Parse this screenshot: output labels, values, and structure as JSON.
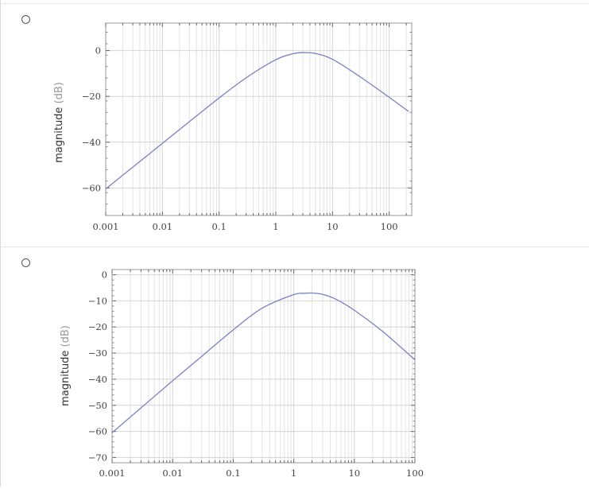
{
  "options": [
    {
      "radio_label": "",
      "chart_data": {
        "type": "line",
        "title": "",
        "xlabel": "",
        "ylabel": "magnitude",
        "ylabel_unit": "(dB)",
        "x_scale": "log",
        "xlim": [
          0.001,
          250
        ],
        "ylim": [
          -72,
          12
        ],
        "xticks": [
          "0.001",
          "0.01",
          "0.1",
          "1",
          "10",
          "100"
        ],
        "yticks": [
          "0",
          "−20",
          "−40",
          "−60"
        ],
        "ytick_values": [
          0,
          -20,
          -40,
          -60
        ],
        "grid": true,
        "line_color": "#7b7fc4",
        "series": [
          {
            "x": [
              0.001,
              0.003,
              0.01,
              0.03,
              0.1,
              0.3,
              1,
              2,
              3,
              5,
              10,
              30,
              100,
              220
            ],
            "y": [
              -60.4,
              -50.9,
              -40.5,
              -31.0,
              -20.7,
              -11.9,
              -4.0,
              -1.4,
              -0.9,
              -1.3,
              -3.8,
              -11.3,
              -20.4,
              -26.6
            ]
          }
        ]
      }
    },
    {
      "radio_label": "",
      "chart_data": {
        "type": "line",
        "title": "",
        "xlabel": "",
        "ylabel": "magnitude",
        "ylabel_unit": "(dB)",
        "x_scale": "log",
        "xlim": [
          0.001,
          100
        ],
        "ylim": [
          -72,
          2
        ],
        "xticks": [
          "0.001",
          "0.01",
          "0.1",
          "1",
          "10",
          "100"
        ],
        "yticks": [
          "0",
          "−10",
          "−20",
          "−30",
          "−40",
          "−50",
          "−60",
          "−70"
        ],
        "ytick_values": [
          0,
          -10,
          -20,
          -30,
          -40,
          -50,
          -60,
          -70
        ],
        "grid": true,
        "line_color": "#7b7fc4",
        "series": [
          {
            "x": [
              0.001,
              0.003,
              0.01,
              0.03,
              0.1,
              0.3,
              1,
              1.5,
              2,
              3,
              5,
              10,
              30,
              100
            ],
            "y": [
              -60.5,
              -51.0,
              -40.6,
              -31.3,
              -21.1,
              -12.8,
              -7.6,
              -7.1,
              -7.0,
              -7.5,
              -9.4,
              -13.6,
              -21.9,
              -32.6
            ]
          }
        ]
      }
    }
  ]
}
